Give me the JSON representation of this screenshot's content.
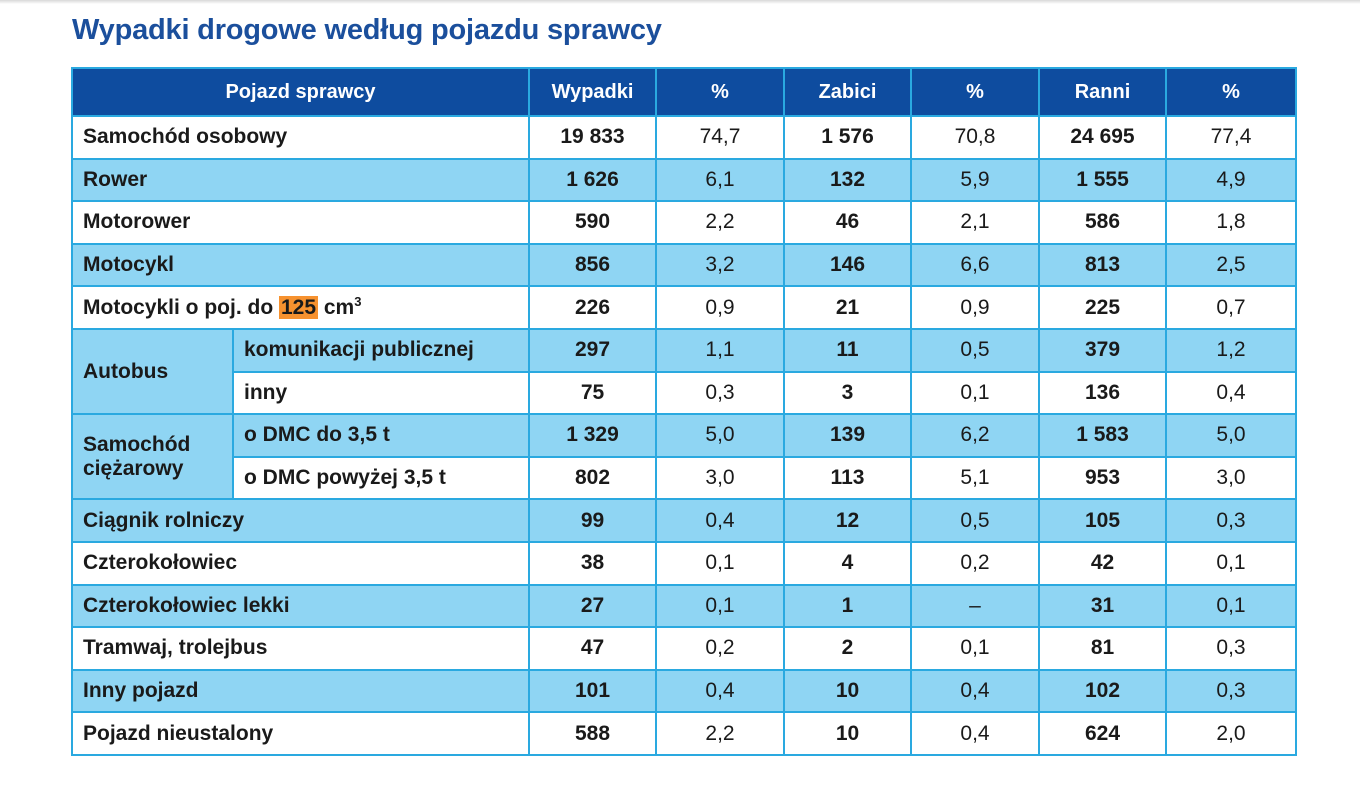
{
  "title": "Wypadki drogowe według pojazdu sprawcy",
  "headers": [
    "Pojazd sprawcy",
    "Wypadki",
    "%",
    "Zabici",
    "%",
    "Ranni",
    "%"
  ],
  "colors": {
    "header": "#0e4c9f",
    "border": "#2aa9e0",
    "stripe": "#8fd5f3",
    "highlight": "#f7922f",
    "title": "#1b4f9c"
  },
  "rows": [
    {
      "label": "Samochód osobowy",
      "values": [
        "19 833",
        "74,7",
        "1 576",
        "70,8",
        "24 695",
        "77,4"
      ]
    },
    {
      "label": "Rower",
      "values": [
        "1 626",
        "6,1",
        "132",
        "5,9",
        "1 555",
        "4,9"
      ]
    },
    {
      "label": "Motorower",
      "values": [
        "590",
        "2,2",
        "46",
        "2,1",
        "586",
        "1,8"
      ]
    },
    {
      "label": "Motocykl",
      "values": [
        "856",
        "3,2",
        "146",
        "6,6",
        "813",
        "2,5"
      ]
    },
    {
      "label_parts": [
        "Motocykli o poj. do ",
        "125",
        " cm",
        "3"
      ],
      "values": [
        "226",
        "0,9",
        "21",
        "0,9",
        "225",
        "0,7"
      ]
    },
    {
      "group": "Autobus",
      "label": "komunikacji publicznej",
      "values": [
        "297",
        "1,1",
        "11",
        "0,5",
        "379",
        "1,2"
      ]
    },
    {
      "group_cont": true,
      "label": "inny",
      "values": [
        "75",
        "0,3",
        "3",
        "0,1",
        "136",
        "0,4"
      ]
    },
    {
      "group": "Samochód ciężarowy",
      "label": "o DMC do 3,5 t",
      "values": [
        "1 329",
        "5,0",
        "139",
        "6,2",
        "1 583",
        "5,0"
      ]
    },
    {
      "group_cont": true,
      "label": "o DMC powyżej 3,5 t",
      "values": [
        "802",
        "3,0",
        "113",
        "5,1",
        "953",
        "3,0"
      ]
    },
    {
      "label": "Ciągnik rolniczy",
      "values": [
        "99",
        "0,4",
        "12",
        "0,5",
        "105",
        "0,3"
      ]
    },
    {
      "label": "Czterokołowiec",
      "values": [
        "38",
        "0,1",
        "4",
        "0,2",
        "42",
        "0,1"
      ]
    },
    {
      "label": "Czterokołowiec lekki",
      "values": [
        "27",
        "0,1",
        "1",
        "–",
        "31",
        "0,1"
      ]
    },
    {
      "label": "Tramwaj, trolejbus",
      "values": [
        "47",
        "0,2",
        "2",
        "0,1",
        "81",
        "0,3"
      ]
    },
    {
      "label": "Inny pojazd",
      "values": [
        "101",
        "0,4",
        "10",
        "0,4",
        "102",
        "0,3"
      ]
    },
    {
      "label": "Pojazd nieustalony",
      "values": [
        "588",
        "2,2",
        "10",
        "0,4",
        "624",
        "2,0"
      ]
    }
  ]
}
